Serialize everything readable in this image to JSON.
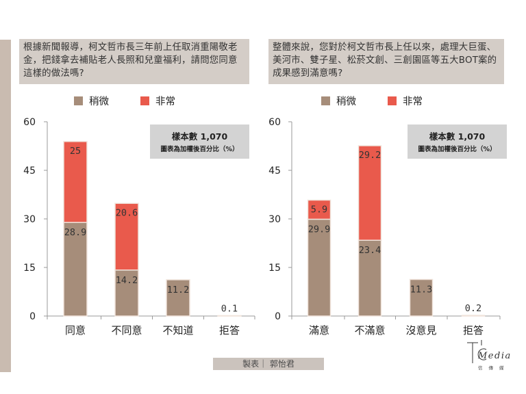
{
  "colors": {
    "slight": "#a68d7a",
    "very": "#e95a4c",
    "sidebar": "#c9bbb0",
    "question_bg": "#d4cdc7",
    "sample_bg": "#d3d3d3",
    "credit_bg": "#cbc3bd"
  },
  "questions": {
    "left": "根據新聞報導，柯文哲市長三年前上任取消重陽敬老金，把錢拿去補貼老人長照和兒童福利，請問您同意這樣的做法嗎?",
    "right": "整體來說，您對於柯文哲市長上任以來，處理大巨蛋、美河市、雙子星、松菸文創、三創園區等五大BOT案的成果感到滿意嗎?"
  },
  "legend": {
    "slight": "稍微",
    "very": "非常"
  },
  "sample": {
    "line1": "樣本數 1,070",
    "line2": "圖表為加權後百分比（%）"
  },
  "footer": {
    "credit": "製表｜ 郭怡君"
  },
  "logo": {
    "brand": "Media",
    "sub": "信傳媒"
  },
  "chart_data": [
    {
      "type": "bar",
      "stacked": true,
      "categories": [
        "同意",
        "不同意",
        "不知道",
        "拒答"
      ],
      "series": [
        {
          "name": "稍微",
          "values": [
            28.9,
            14.2,
            11.2,
            0.1
          ]
        },
        {
          "name": "非常",
          "values": [
            25,
            20.6,
            0,
            0
          ]
        }
      ],
      "ylim": [
        0,
        60
      ],
      "yticks": [
        0,
        15,
        30,
        45,
        60
      ],
      "legend_position": "top",
      "grid": false
    },
    {
      "type": "bar",
      "stacked": true,
      "categories": [
        "滿意",
        "不滿意",
        "沒意見",
        "拒答"
      ],
      "series": [
        {
          "name": "稍微",
          "values": [
            29.9,
            23.4,
            11.3,
            0.2
          ]
        },
        {
          "name": "非常",
          "values": [
            5.9,
            29.2,
            0,
            0
          ]
        }
      ],
      "ylim": [
        0,
        60
      ],
      "yticks": [
        0,
        15,
        30,
        45,
        60
      ],
      "legend_position": "top",
      "grid": false
    }
  ]
}
